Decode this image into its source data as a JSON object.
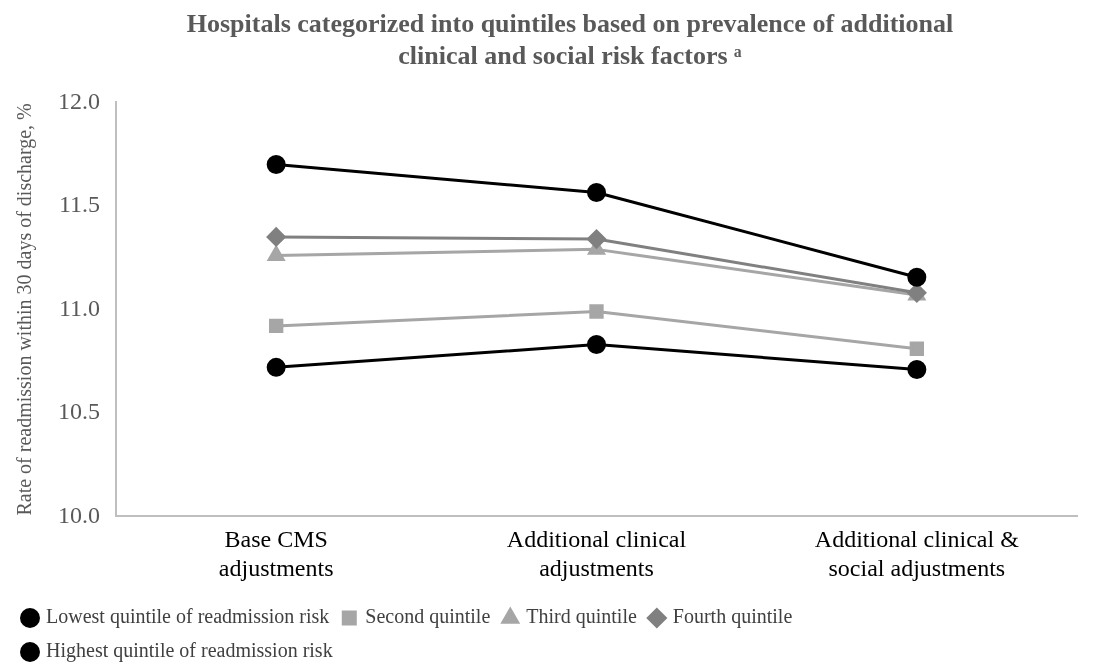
{
  "chart_data": {
    "type": "line",
    "title": "Hospitals categorized into quintiles based on prevalence of additional clinical and social risk factors ᵃ",
    "ylabel": "Rate of readmission within 30 days of discharge, %",
    "categories": [
      "Base CMS adjustments",
      "Additional clinical adjustments",
      "Additional clinical & social adjustments"
    ],
    "series": [
      {
        "name": "Lowest quintile of readmission risk",
        "color": "#000000",
        "marker": "circle",
        "values": [
          10.72,
          10.83,
          10.71
        ]
      },
      {
        "name": "Second quintile",
        "color": "#a6a6a6",
        "marker": "square",
        "values": [
          10.92,
          10.99,
          10.81
        ]
      },
      {
        "name": "Third quintile",
        "color": "#a6a6a6",
        "marker": "triangle",
        "values": [
          11.26,
          11.29,
          11.07
        ]
      },
      {
        "name": "Fourth quintile",
        "color": "#808080",
        "marker": "diamond",
        "values": [
          11.35,
          11.34,
          11.08
        ]
      },
      {
        "name": "Highest quintile of readmission risk",
        "color": "#000000",
        "marker": "circle",
        "values": [
          11.7,
          11.565,
          11.155
        ]
      }
    ],
    "ylim": [
      10,
      12
    ],
    "yticks": [
      {
        "value": 10,
        "label": "10.0"
      },
      {
        "value": 10.5,
        "label": "10.5"
      },
      {
        "value": 11,
        "label": "11.0"
      },
      {
        "value": 11.5,
        "label": "11.5"
      },
      {
        "value": 12,
        "label": "12.0"
      }
    ],
    "grid": false,
    "legend": "bottom"
  }
}
